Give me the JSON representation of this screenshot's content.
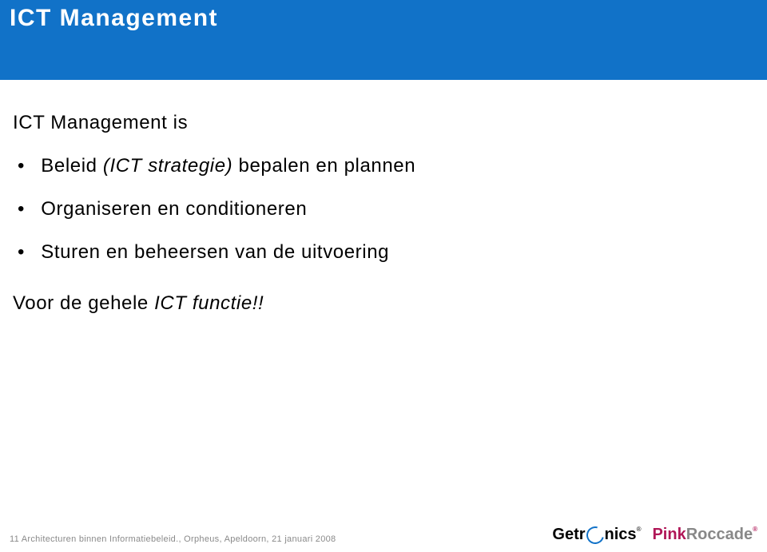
{
  "colors": {
    "title_bar_bg": "#1172c8",
    "title_text": "#ffffff",
    "body_text": "#000000",
    "footer_text": "#8a8a8a",
    "getronics_blue": "#1172c8",
    "pinkroccade_pink": "#b01657",
    "pinkroccade_gray": "#888888",
    "background": "#ffffff"
  },
  "typography": {
    "title_fontsize": 30,
    "body_fontsize": 24,
    "footer_fontsize": 11,
    "logo_fontsize": 20,
    "title_weight": 700,
    "title_letter_spacing": 1.5
  },
  "title": "ICT Management",
  "intro": "ICT Management is",
  "bullets": [
    {
      "prefix": "Beleid  ",
      "italic": "(ICT strategie)",
      "suffix": " bepalen en plannen"
    },
    {
      "prefix": "Organiseren en conditioneren",
      "italic": "",
      "suffix": ""
    },
    {
      "prefix": "Sturen en beheersen van de uitvoering",
      "italic": "",
      "suffix": ""
    }
  ],
  "closing_prefix": "Voor de gehele ",
  "closing_italic": "ICT functie!!",
  "footer_page": "11",
  "footer_text": "Architecturen binnen Informatiebeleid., Orpheus, Apeldoorn, 21 januari 2008",
  "logos": {
    "getronics_pre": "Getr",
    "getronics_post": "nics",
    "pinkroccade_pink": "Pink",
    "pinkroccade_gray": "Roccade",
    "registered": "®"
  }
}
